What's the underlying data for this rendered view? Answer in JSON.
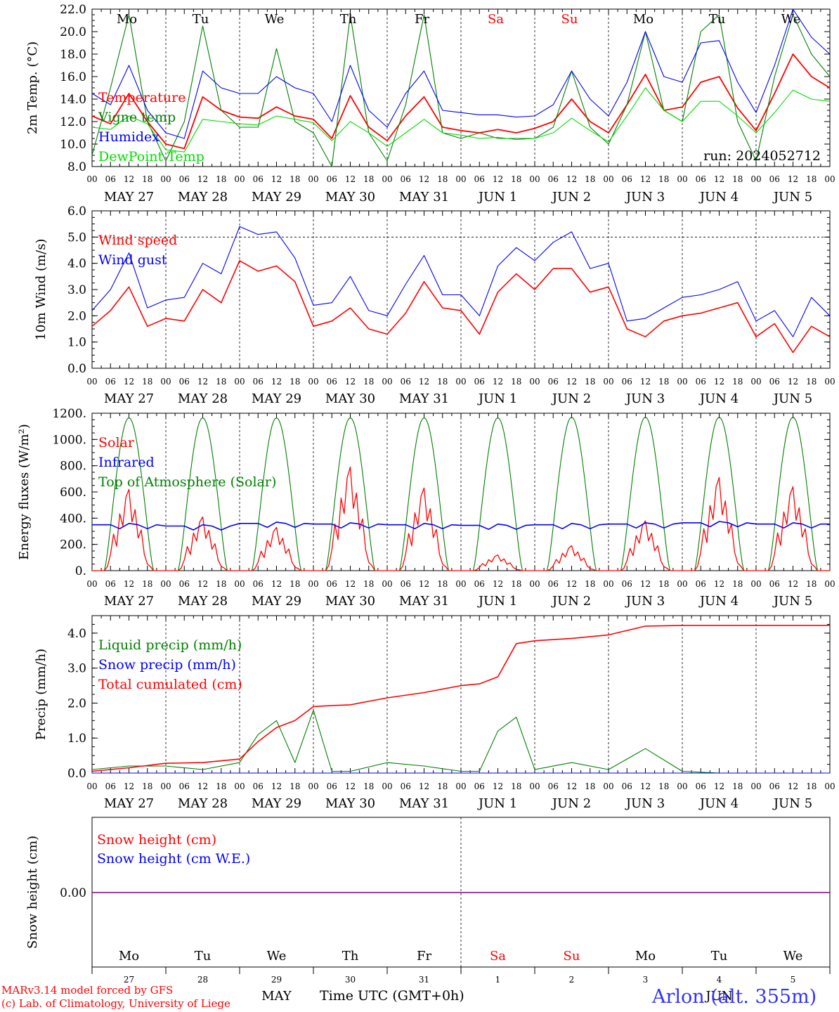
{
  "footer": {
    "credit_line1": "MARv3.14 model forced by GFS",
    "credit_line2": "(c) Lab. of Climatology, University of Liege",
    "x_title": "Time UTC (GMT+0h)",
    "station": "Arlon (alt. 355m)"
  },
  "days": {
    "date_labels": [
      "MAY 27",
      "MAY 28",
      "MAY 29",
      "MAY 30",
      "MAY 31",
      "JUN  1",
      "JUN  2",
      "JUN  3",
      "JUN  4",
      "JUN  5"
    ],
    "weekday_labels": [
      "Mo",
      "Tu",
      "We",
      "Th",
      "Fr",
      "Sa",
      "Su",
      "Mo",
      "Tu",
      "We"
    ],
    "weekend_index": [
      5,
      6
    ],
    "hour_labels": [
      "00",
      "06",
      "12",
      "18"
    ],
    "end_hour_label": "00",
    "day_numbers": [
      "27",
      "28",
      "29",
      "30",
      "31",
      "1",
      "2",
      "3",
      "4",
      "5"
    ],
    "month_labels": [
      "MAY",
      "JUN"
    ]
  },
  "colors": {
    "red": "#ff0000",
    "green": "#008000",
    "blue": "#0000ff",
    "lightgreen": "#00dd00",
    "purple": "#800080",
    "weekend": "#ff0000"
  },
  "chart_data": [
    {
      "type": "line",
      "ylabel": "2m Temp. (°C)",
      "ylim": [
        8,
        22
      ],
      "yticks": [
        "8.0",
        "10.0",
        "12.0",
        "14.0",
        "16.0",
        "18.0",
        "20.0",
        "22.0"
      ],
      "annotation": "run: 2024052712",
      "x_hours": [
        0,
        6,
        12,
        18,
        24,
        30,
        36,
        42,
        48,
        54,
        60,
        66,
        72,
        78,
        84,
        90,
        96,
        102,
        108,
        114,
        120,
        126,
        132,
        138,
        144,
        150,
        156,
        162,
        168,
        174,
        180,
        186,
        192,
        198,
        204,
        210,
        216,
        222,
        228,
        234,
        240
      ],
      "series": [
        {
          "name": "Temperature",
          "color": "red",
          "values": [
            12.5,
            11.8,
            14.5,
            12.0,
            10.0,
            9.6,
            14.2,
            13.0,
            12.4,
            12.3,
            13.3,
            12.5,
            12.2,
            10.5,
            14.3,
            11.5,
            10.3,
            12.5,
            14.2,
            11.5,
            11.2,
            11.0,
            11.3,
            11.0,
            11.4,
            12.0,
            14.0,
            12.0,
            11.0,
            13.5,
            16.2,
            13.0,
            13.3,
            15.5,
            16.0,
            13.2,
            11.2,
            14.5,
            18.0,
            16.0,
            15.0
          ]
        },
        {
          "name": "Vigne temp",
          "color": "green",
          "values": [
            9.0,
            15.0,
            21.5,
            12.0,
            8.5,
            12.0,
            20.5,
            13.0,
            11.5,
            11.5,
            18.5,
            12.0,
            11.0,
            8.0,
            21.5,
            11.0,
            8.5,
            13.5,
            21.5,
            11.0,
            10.5,
            11.0,
            10.5,
            10.5,
            10.5,
            11.5,
            16.5,
            11.5,
            10.0,
            13.5,
            20.0,
            13.0,
            12.0,
            20.0,
            21.5,
            12.0,
            8.5,
            16.0,
            21.5,
            18.0,
            16.0
          ]
        },
        {
          "name": "Humidex",
          "color": "blue",
          "values": [
            14.5,
            13.5,
            17.0,
            13.0,
            11.0,
            10.5,
            16.5,
            15.0,
            14.5,
            14.5,
            16.0,
            15.0,
            14.5,
            12.0,
            17.0,
            13.0,
            11.5,
            14.5,
            16.5,
            13.0,
            12.8,
            12.6,
            12.6,
            12.4,
            12.5,
            13.5,
            16.5,
            14.0,
            12.5,
            15.5,
            20.0,
            16.0,
            15.5,
            19.0,
            19.2,
            15.5,
            12.8,
            17.0,
            22.0,
            19.5,
            18.0
          ]
        },
        {
          "name": "DewPoint Temp",
          "color": "lightgreen",
          "values": [
            11.5,
            11.3,
            12.5,
            11.8,
            9.5,
            9.3,
            12.2,
            12.0,
            11.8,
            11.7,
            12.5,
            12.2,
            11.9,
            10.3,
            12.0,
            11.0,
            9.8,
            11.0,
            12.2,
            11.0,
            10.8,
            10.5,
            10.6,
            10.4,
            10.5,
            11.0,
            12.3,
            11.2,
            10.2,
            12.5,
            15.0,
            13.0,
            12.0,
            13.8,
            13.8,
            12.5,
            11.0,
            12.8,
            14.8,
            14.0,
            13.8
          ]
        }
      ]
    },
    {
      "type": "line",
      "ylabel": "10m Wind (m/s)",
      "ylim": [
        0,
        6
      ],
      "yticks": [
        "0.0",
        "1.0",
        "2.0",
        "3.0",
        "4.0",
        "5.0",
        "6.0"
      ],
      "reference_line": 5.0,
      "x_hours": [
        0,
        6,
        12,
        18,
        24,
        30,
        36,
        42,
        48,
        54,
        60,
        66,
        72,
        78,
        84,
        90,
        96,
        102,
        108,
        114,
        120,
        126,
        132,
        138,
        144,
        150,
        156,
        162,
        168,
        174,
        180,
        186,
        192,
        198,
        204,
        210,
        216,
        222,
        228,
        234,
        240
      ],
      "series": [
        {
          "name": "Wind speed",
          "color": "red",
          "values": [
            1.6,
            2.2,
            3.1,
            1.6,
            1.9,
            1.8,
            3.0,
            2.5,
            4.1,
            3.7,
            3.9,
            3.3,
            1.6,
            1.8,
            2.3,
            1.5,
            1.3,
            2.1,
            3.3,
            2.3,
            2.2,
            1.3,
            2.9,
            3.6,
            3.0,
            3.8,
            3.8,
            2.9,
            3.1,
            1.5,
            1.2,
            1.8,
            2.0,
            2.1,
            2.3,
            2.5,
            1.2,
            1.7,
            0.6,
            1.6,
            1.2
          ]
        },
        {
          "name": "Wind gust",
          "color": "blue",
          "values": [
            2.2,
            3.0,
            4.4,
            2.3,
            2.6,
            2.7,
            4.0,
            3.6,
            5.4,
            5.1,
            5.2,
            4.2,
            2.4,
            2.5,
            3.5,
            2.2,
            2.0,
            3.2,
            4.3,
            2.8,
            2.8,
            2.0,
            3.9,
            4.6,
            4.1,
            4.8,
            5.2,
            3.8,
            4.0,
            1.8,
            1.9,
            2.3,
            2.7,
            2.8,
            3.0,
            3.3,
            1.8,
            2.2,
            1.2,
            2.7,
            2.0
          ]
        }
      ]
    },
    {
      "type": "line",
      "ylabel": "Energy fluxes (W/m²)",
      "ylim": [
        0,
        1200
      ],
      "yticks": [
        "0.",
        "200.",
        "400.",
        "600.",
        "800.",
        "1000.",
        "1200."
      ],
      "series": [
        {
          "name": "Solar",
          "color": "red",
          "daily_peak": [
            620,
            410,
            330,
            790,
            630,
            120,
            190,
            380,
            710,
            640
          ]
        },
        {
          "name": "Infrared",
          "color": "blue",
          "daily_level": [
            350,
            340,
            360,
            355,
            350,
            345,
            350,
            355,
            365,
            355
          ]
        },
        {
          "name": "Top of Atmosphere (Solar)",
          "color": "green",
          "daily_peak": [
            1165,
            1165,
            1165,
            1165,
            1165,
            1165,
            1170,
            1170,
            1170,
            1170
          ]
        }
      ]
    },
    {
      "type": "line",
      "ylabel": "Precip (mm/h)",
      "ylim": [
        0,
        4.5
      ],
      "yticks": [
        "0.0",
        "1.0",
        "2.0",
        "3.0",
        "4.0"
      ],
      "x_hours": [
        0,
        12,
        24,
        36,
        48,
        54,
        60,
        66,
        72,
        78,
        84,
        96,
        108,
        120,
        126,
        132,
        138,
        144,
        156,
        168,
        180,
        192,
        204,
        216,
        228,
        240
      ],
      "series": [
        {
          "name": "Liquid precip (mm/h)",
          "color": "green",
          "values": [
            0.1,
            0.2,
            0.2,
            0.1,
            0.3,
            1.1,
            1.5,
            0.3,
            1.8,
            0.05,
            0.05,
            0.3,
            0.2,
            0.05,
            0.05,
            1.2,
            1.6,
            0.1,
            0.3,
            0.1,
            0.7,
            0.05,
            0.0,
            0.0,
            0.0,
            0.0
          ]
        },
        {
          "name": "Snow precip (mm/h)",
          "color": "blue",
          "values": [
            0,
            0,
            0,
            0,
            0,
            0,
            0,
            0,
            0,
            0,
            0,
            0,
            0,
            0,
            0,
            0,
            0,
            0,
            0,
            0,
            0,
            0,
            0,
            0,
            0,
            0
          ]
        },
        {
          "name": "Total cumulated (cm)",
          "color": "red",
          "values": [
            0.05,
            0.15,
            0.28,
            0.3,
            0.4,
            0.9,
            1.3,
            1.5,
            1.9,
            1.93,
            1.95,
            2.15,
            2.3,
            2.5,
            2.55,
            2.75,
            3.7,
            3.78,
            3.85,
            3.95,
            4.2,
            4.22,
            4.22,
            4.22,
            4.22,
            4.22
          ]
        }
      ]
    },
    {
      "type": "line",
      "ylabel": "Snow height (cm)",
      "ytick": "0.00",
      "series": [
        {
          "name": "Snow height (cm)",
          "color": "red",
          "values": [
            0,
            0
          ]
        },
        {
          "name": "Snow height (cm W.E.)",
          "color": "blue",
          "values": [
            0,
            0
          ]
        }
      ]
    }
  ]
}
